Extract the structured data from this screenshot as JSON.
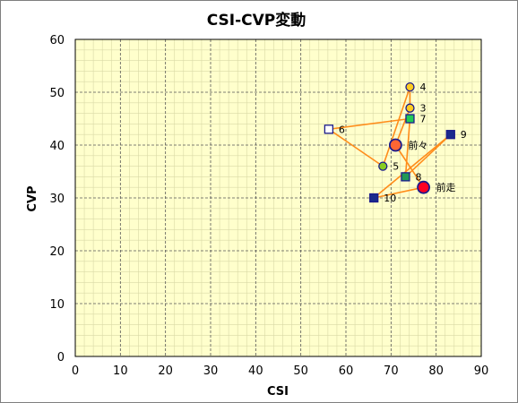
{
  "chart_data": {
    "type": "scatter",
    "title": "CSI-CVP変動",
    "xlabel": "CSI",
    "ylabel": "CVP",
    "xlim": [
      0,
      90
    ],
    "ylim": [
      0,
      60
    ],
    "x_ticks": [
      0,
      10,
      20,
      30,
      40,
      50,
      60,
      70,
      80,
      90
    ],
    "y_ticks": [
      0,
      10,
      20,
      30,
      40,
      50,
      60
    ],
    "grid": true,
    "major_grid_style": "dashed",
    "minor_grid": true,
    "plot_background": "#ffffcc",
    "line_color": "#ff8c1a",
    "points": [
      {
        "label": "前走",
        "x": 77.2,
        "y": 32.0,
        "marker": "circle-large",
        "fill": "#ff0022",
        "stroke": "#1a1a8c"
      },
      {
        "label": "前々",
        "x": 71.0,
        "y": 40.0,
        "marker": "circle-large",
        "fill": "#ff6633",
        "stroke": "#1a1a8c"
      },
      {
        "label": "3",
        "x": 74.2,
        "y": 47.0,
        "marker": "circle",
        "fill": "#ffcc22",
        "stroke": "#1a1a8c"
      },
      {
        "label": "4",
        "x": 74.2,
        "y": 51.0,
        "marker": "circle",
        "fill": "#ffcc22",
        "stroke": "#1a1a8c"
      },
      {
        "label": "5",
        "x": 68.2,
        "y": 36.0,
        "marker": "circle",
        "fill": "#88cc22",
        "stroke": "#1a1a8c"
      },
      {
        "label": "6",
        "x": 56.2,
        "y": 43.0,
        "marker": "square-open",
        "fill": "#ffffff",
        "stroke": "#1a1a8c"
      },
      {
        "label": "7",
        "x": 74.2,
        "y": 45.0,
        "marker": "square",
        "fill": "#22cc55",
        "stroke": "#1a1a8c"
      },
      {
        "label": "8",
        "x": 73.2,
        "y": 34.0,
        "marker": "square",
        "fill": "#229955",
        "stroke": "#1a1a8c"
      },
      {
        "label": "9",
        "x": 83.2,
        "y": 42.0,
        "marker": "square",
        "fill": "#1a2a8c",
        "stroke": "#1a1a8c"
      },
      {
        "label": "10",
        "x": 66.2,
        "y": 30.0,
        "marker": "square",
        "fill": "#1a2a8c",
        "stroke": "#1a1a8c"
      }
    ]
  }
}
